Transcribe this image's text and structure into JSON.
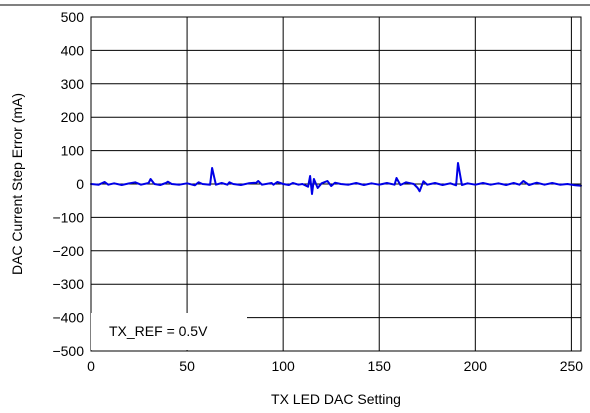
{
  "chart_data": {
    "type": "line",
    "title": "",
    "xlabel": "TX LED DAC Setting",
    "ylabel": "DAC Current Step Error (mA)",
    "xlim": [
      0,
      255
    ],
    "ylim": [
      -500,
      500
    ],
    "grid": true,
    "x_ticks": [
      0,
      50,
      100,
      150,
      200,
      250
    ],
    "y_ticks": [
      -500,
      -400,
      -300,
      -200,
      -100,
      0,
      100,
      200,
      300,
      400,
      500
    ],
    "x_tick_labels": [
      "0",
      "50",
      "100",
      "150",
      "200",
      "250"
    ],
    "y_tick_labels": [
      "−500",
      "−400",
      "−300",
      "−200",
      "−100",
      "0",
      "100",
      "200",
      "300",
      "400",
      "500"
    ],
    "annotation": "TX_REF = 0.5V",
    "series": [
      {
        "color": "#0000e6",
        "x": [
          0,
          4,
          7,
          9,
          12,
          16,
          20,
          23,
          26,
          30,
          31,
          33,
          36,
          39,
          40,
          42,
          46,
          50,
          54,
          56,
          58,
          62,
          63,
          65,
          68,
          71,
          72,
          74,
          78,
          82,
          86,
          87,
          89,
          94,
          95,
          97,
          100,
          103,
          105,
          108,
          110,
          113,
          114,
          115,
          116,
          118,
          120,
          123,
          125,
          127,
          130,
          134,
          138,
          142,
          146,
          150,
          154,
          158,
          159,
          161,
          164,
          168,
          170,
          171,
          173,
          175,
          179,
          183,
          187,
          190,
          191,
          193,
          196,
          200,
          204,
          208,
          212,
          216,
          220,
          223,
          225,
          228,
          232,
          236,
          240,
          244,
          248,
          252,
          255
        ],
        "y": [
          0,
          -2,
          6,
          -2,
          2,
          -3,
          2,
          5,
          -2,
          3,
          15,
          0,
          -3,
          3,
          7,
          0,
          -2,
          2,
          -4,
          5,
          0,
          -2,
          48,
          -2,
          3,
          -2,
          5,
          0,
          -3,
          2,
          4,
          9,
          -2,
          3,
          -2,
          6,
          0,
          -3,
          3,
          -2,
          0,
          -8,
          24,
          -30,
          15,
          -12,
          2,
          9,
          -6,
          4,
          0,
          -2,
          3,
          -3,
          2,
          -2,
          3,
          -2,
          18,
          -3,
          5,
          0,
          -12,
          -22,
          8,
          -2,
          3,
          -3,
          2,
          -4,
          63,
          -3,
          2,
          -2,
          3,
          -2,
          2,
          -3,
          3,
          -2,
          9,
          -3,
          4,
          -2,
          3,
          -2,
          0,
          -4,
          -5
        ]
      }
    ]
  }
}
